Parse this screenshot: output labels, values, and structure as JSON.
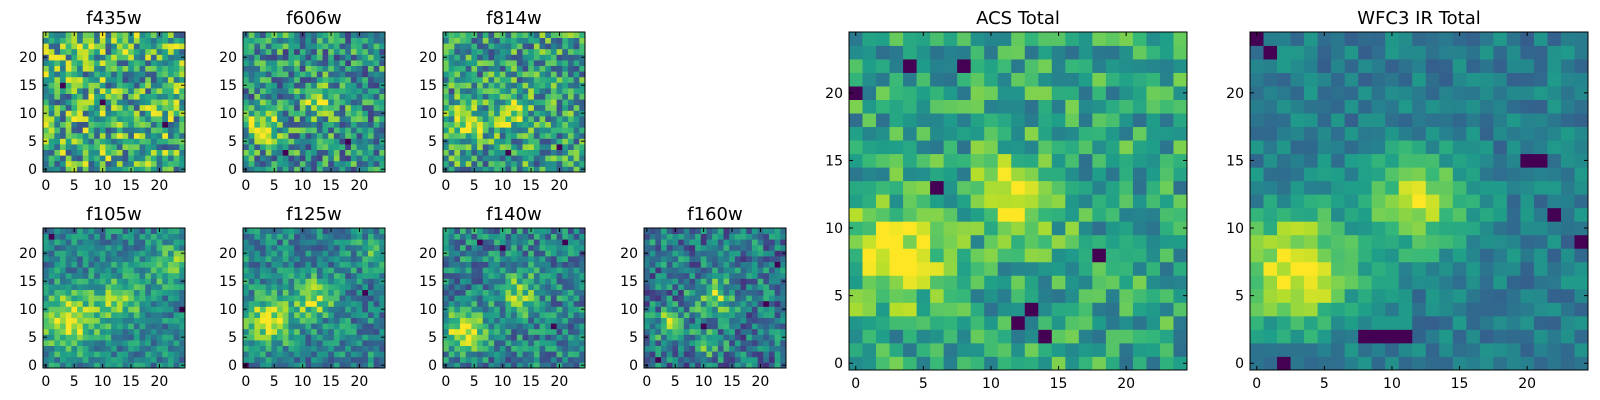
{
  "chart_data": [
    {
      "type": "heatmap",
      "title": "f435w",
      "grid": 25,
      "seed": 11,
      "blobs": [],
      "noise": 0.75,
      "base": 0.62,
      "dark_spots": [
        [
          10,
          12
        ],
        [
          21,
          8
        ],
        [
          3,
          15
        ]
      ],
      "colormap": "viridis",
      "xticks": [
        "0",
        "5",
        "10",
        "15",
        "20"
      ],
      "xtick_values": [
        0,
        5,
        10,
        15,
        20
      ],
      "yticks": [
        "0",
        "5",
        "10",
        "15",
        "20"
      ],
      "ytick_values": [
        0,
        5,
        10,
        15,
        20
      ],
      "xlim": [
        0,
        24
      ],
      "ylim": [
        0,
        24
      ]
    },
    {
      "type": "heatmap",
      "title": "f606w",
      "grid": 25,
      "seed": 23,
      "blobs": [
        [
          3,
          8,
          2.2,
          0.5
        ],
        [
          13,
          12,
          2.0,
          0.4
        ]
      ],
      "noise": 0.65,
      "base": 0.5,
      "dark_spots": [
        [
          18,
          5
        ],
        [
          7,
          3
        ]
      ],
      "colormap": "viridis",
      "xticks": [
        "0",
        "5",
        "10",
        "15",
        "20"
      ],
      "xtick_values": [
        0,
        5,
        10,
        15,
        20
      ],
      "yticks": [
        "0",
        "5",
        "10",
        "15",
        "20"
      ],
      "ytick_values": [
        0,
        5,
        10,
        15,
        20
      ],
      "xlim": [
        0,
        24
      ],
      "ylim": [
        0,
        24
      ]
    },
    {
      "type": "heatmap",
      "title": "f814w",
      "grid": 25,
      "seed": 37,
      "blobs": [
        [
          4,
          8,
          2.0,
          0.45
        ],
        [
          12,
          10,
          2.0,
          0.35
        ]
      ],
      "noise": 0.65,
      "base": 0.55,
      "dark_spots": [
        [
          20,
          4
        ],
        [
          11,
          3
        ]
      ],
      "colormap": "viridis",
      "xticks": [
        "0",
        "5",
        "10",
        "15",
        "20"
      ],
      "xtick_values": [
        0,
        5,
        10,
        15,
        20
      ],
      "yticks": [
        "0",
        "5",
        "10",
        "15",
        "20"
      ],
      "ytick_values": [
        0,
        5,
        10,
        15,
        20
      ],
      "xlim": [
        0,
        24
      ],
      "ylim": [
        0,
        24
      ]
    },
    {
      "type": "heatmap",
      "title": "f105w",
      "grid": 25,
      "seed": 41,
      "blobs": [
        [
          4,
          8,
          3.5,
          0.5
        ],
        [
          13,
          12,
          3.0,
          0.35
        ],
        [
          22,
          18,
          2.5,
          0.3
        ]
      ],
      "noise": 0.4,
      "base": 0.45,
      "dark_spots": [
        [
          1,
          23
        ],
        [
          24,
          10
        ]
      ],
      "colormap": "viridis",
      "xticks": [
        "0",
        "5",
        "10",
        "15",
        "20"
      ],
      "xtick_values": [
        0,
        5,
        10,
        15,
        20
      ],
      "yticks": [
        "0",
        "5",
        "10",
        "15",
        "20"
      ],
      "ytick_values": [
        0,
        5,
        10,
        15,
        20
      ],
      "xlim": [
        0,
        24
      ],
      "ylim": [
        0,
        24
      ]
    },
    {
      "type": "heatmap",
      "title": "f125w",
      "grid": 25,
      "seed": 53,
      "blobs": [
        [
          4,
          8,
          3.0,
          0.45
        ],
        [
          12,
          12,
          2.5,
          0.4
        ],
        [
          23,
          20,
          2.0,
          0.3
        ]
      ],
      "noise": 0.45,
      "base": 0.45,
      "dark_spots": [
        [
          0,
          0
        ],
        [
          21,
          13
        ]
      ],
      "colormap": "viridis",
      "xticks": [
        "0",
        "5",
        "10",
        "15",
        "20"
      ],
      "xtick_values": [
        0,
        5,
        10,
        15,
        20
      ],
      "yticks": [
        "0",
        "5",
        "10",
        "15",
        "20"
      ],
      "ytick_values": [
        0,
        5,
        10,
        15,
        20
      ],
      "xlim": [
        0,
        24
      ],
      "ylim": [
        0,
        24
      ]
    },
    {
      "type": "heatmap",
      "title": "f140w",
      "grid": 25,
      "seed": 67,
      "blobs": [
        [
          3,
          6,
          2.5,
          0.5
        ],
        [
          13,
          13,
          2.5,
          0.35
        ]
      ],
      "noise": 0.5,
      "base": 0.45,
      "dark_spots": [
        [
          6,
          22
        ],
        [
          10,
          21
        ],
        [
          19,
          7
        ],
        [
          21,
          22
        ]
      ],
      "colormap": "viridis",
      "xticks": [
        "0",
        "5",
        "10",
        "15",
        "20"
      ],
      "xtick_values": [
        0,
        5,
        10,
        15,
        20
      ],
      "yticks": [
        "0",
        "5",
        "10",
        "15",
        "20"
      ],
      "ytick_values": [
        0,
        5,
        10,
        15,
        20
      ],
      "xlim": [
        0,
        24
      ],
      "ylim": [
        0,
        24
      ]
    },
    {
      "type": "heatmap",
      "title": "f160w",
      "grid": 25,
      "seed": 79,
      "blobs": [
        [
          4,
          7,
          2.0,
          0.4
        ],
        [
          12,
          12,
          2.5,
          0.35
        ],
        [
          11,
          4,
          1.5,
          0.3
        ]
      ],
      "noise": 0.55,
      "base": 0.4,
      "dark_spots": [
        [
          2,
          1
        ],
        [
          10,
          7
        ],
        [
          21,
          11
        ],
        [
          23,
          18
        ]
      ],
      "colormap": "viridis",
      "xticks": [
        "0",
        "5",
        "10",
        "15",
        "20"
      ],
      "xtick_values": [
        0,
        5,
        10,
        15,
        20
      ],
      "yticks": [
        "0",
        "5",
        "10",
        "15",
        "20"
      ],
      "ytick_values": [
        0,
        5,
        10,
        15,
        20
      ],
      "xlim": [
        0,
        24
      ],
      "ylim": [
        0,
        24
      ]
    },
    {
      "type": "heatmap",
      "title": "ACS Total",
      "grid": 25,
      "seed": 89,
      "blobs": [
        [
          3,
          8,
          2.5,
          0.5
        ],
        [
          12,
          12,
          2.2,
          0.4
        ]
      ],
      "noise": 0.45,
      "base": 0.58,
      "dark_spots": [
        [
          0,
          20
        ],
        [
          8,
          22
        ],
        [
          6,
          13
        ],
        [
          13,
          4
        ],
        [
          12,
          3
        ],
        [
          18,
          8
        ],
        [
          4,
          22
        ],
        [
          14,
          2
        ]
      ],
      "colormap": "viridis",
      "xticks": [
        "0",
        "5",
        "10",
        "15",
        "20"
      ],
      "xtick_values": [
        0,
        5,
        10,
        15,
        20
      ],
      "yticks": [
        "0",
        "5",
        "10",
        "15",
        "20"
      ],
      "ytick_values": [
        0,
        5,
        10,
        15,
        20
      ],
      "xlim": [
        0,
        24
      ],
      "ylim": [
        0,
        24
      ]
    },
    {
      "type": "heatmap",
      "title": "WFC3 IR Total",
      "grid": 25,
      "seed": 97,
      "blobs": [
        [
          3,
          7,
          3.0,
          0.6
        ],
        [
          12,
          12,
          2.5,
          0.5
        ]
      ],
      "noise": 0.25,
      "base": 0.42,
      "dark_spots": [
        [
          0,
          24
        ],
        [
          1,
          23
        ],
        [
          20,
          15
        ],
        [
          21,
          15
        ],
        [
          22,
          11
        ],
        [
          24,
          9
        ],
        [
          8,
          2
        ],
        [
          9,
          2
        ],
        [
          10,
          2
        ],
        [
          11,
          2
        ],
        [
          2,
          0
        ]
      ],
      "colormap": "viridis",
      "xticks": [
        "0",
        "5",
        "10",
        "15",
        "20"
      ],
      "xtick_values": [
        0,
        5,
        10,
        15,
        20
      ],
      "yticks": [
        "0",
        "5",
        "10",
        "15",
        "20"
      ],
      "ytick_values": [
        0,
        5,
        10,
        15,
        20
      ],
      "xlim": [
        0,
        24
      ],
      "ylim": [
        0,
        24
      ]
    }
  ]
}
